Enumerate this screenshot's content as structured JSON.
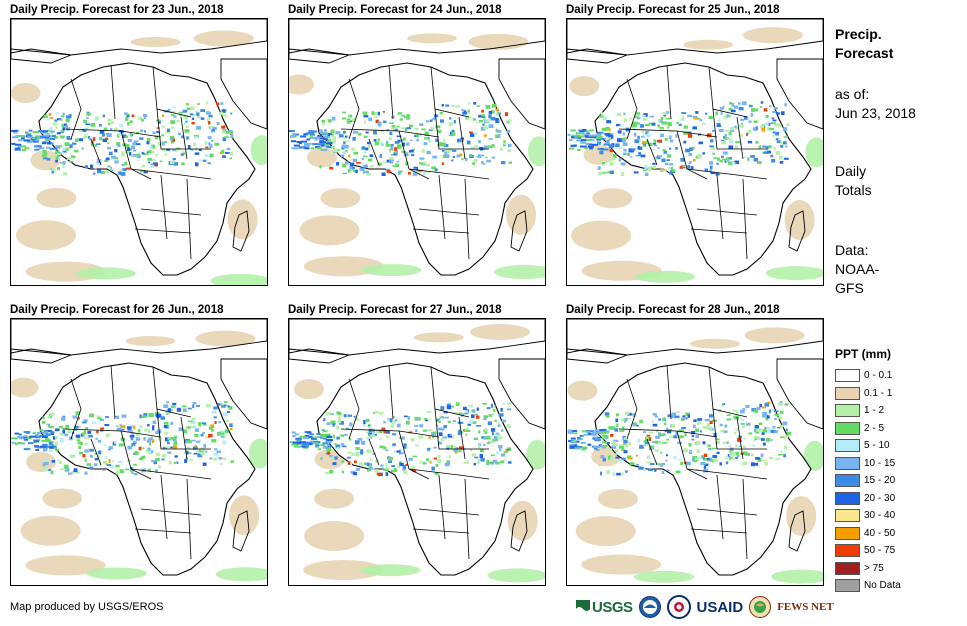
{
  "panels": [
    {
      "title": "Daily Precip. Forecast for 23 Jun., 2018"
    },
    {
      "title": "Daily Precip. Forecast for 24 Jun., 2018"
    },
    {
      "title": "Daily Precip. Forecast for 25 Jun., 2018"
    },
    {
      "title": "Daily Precip. Forecast for 26 Jun., 2018"
    },
    {
      "title": "Daily Precip. Forecast for 27 Jun., 2018"
    },
    {
      "title": "Daily Precip. Forecast for 28 Jun., 2018"
    }
  ],
  "side": {
    "title_line1": "Precip.",
    "title_line2": "Forecast",
    "asof_label": "as of:",
    "asof_date": "Jun 23, 2018",
    "totals_line1": "Daily",
    "totals_line2": "Totals",
    "data_line1": "Data:",
    "data_line2": "NOAA-",
    "data_line3": "GFS"
  },
  "legend": {
    "title": "PPT (mm)",
    "items": [
      {
        "label": "0 - 0.1",
        "color": "#ffffff"
      },
      {
        "label": "0.1 - 1",
        "color": "#e8d4b4"
      },
      {
        "label": "1 - 2",
        "color": "#b4f0a8"
      },
      {
        "label": "2 - 5",
        "color": "#64dc64"
      },
      {
        "label": "5 - 10",
        "color": "#b4ecf8"
      },
      {
        "label": "10 - 15",
        "color": "#78b4f0"
      },
      {
        "label": "15 - 20",
        "color": "#3c8ce6"
      },
      {
        "label": "20 - 30",
        "color": "#1e64e6"
      },
      {
        "label": "30 - 40",
        "color": "#fae68c"
      },
      {
        "label": "40 - 50",
        "color": "#f5a000"
      },
      {
        "label": "50 - 75",
        "color": "#f03c00"
      },
      {
        "label": "> 75",
        "color": "#a01e1e"
      },
      {
        "label": "No Data",
        "color": "#a0a0a0"
      }
    ]
  },
  "footer": {
    "credit": "Map produced by USGS/EROS",
    "logo_usgs": "USGS",
    "logo_usaid": "USAID",
    "logo_fews": "FEWS NET"
  }
}
